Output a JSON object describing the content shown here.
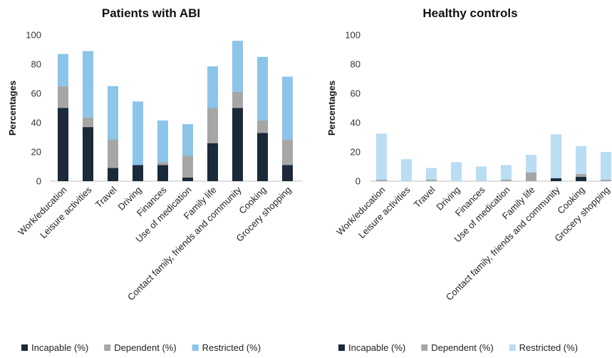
{
  "chart_data": [
    {
      "type": "bar",
      "stacked": true,
      "title": "Patients with ABI",
      "xlabel": "",
      "ylabel": "Percentages",
      "ylim": [
        0,
        100
      ],
      "yticks": [
        "0",
        "20",
        "40",
        "60",
        "80",
        "100"
      ],
      "grid": false,
      "legend": "bottom",
      "categories": [
        "Work/education",
        "Leisure activities",
        "Travel",
        "Driving",
        "Finances",
        "Use of medication",
        "Family life",
        "Contact family, friends and community",
        "Cooking",
        "Grocery shopping"
      ],
      "series": [
        {
          "name": "Incapable (%)",
          "color": "#1b2a3a",
          "values": [
            50,
            37,
            9,
            11,
            11,
            2.5,
            26,
            50,
            33,
            11
          ]
        },
        {
          "name": "Dependent (%)",
          "color": "#a6a6a6",
          "values": [
            15,
            6.5,
            19.5,
            0,
            2,
            15,
            24,
            11,
            8.5,
            17.5
          ]
        },
        {
          "name": "Restricted (%)",
          "color": "#8cc4ea",
          "values": [
            22,
            45.5,
            36.5,
            43.5,
            28.5,
            21.5,
            28.5,
            35,
            43.5,
            43
          ]
        }
      ]
    },
    {
      "type": "bar",
      "stacked": true,
      "title": "Healthy controls",
      "xlabel": "",
      "ylabel": "Percentages",
      "ylim": [
        0,
        100
      ],
      "yticks": [
        "0",
        "20",
        "40",
        "60",
        "80",
        "100"
      ],
      "grid": false,
      "legend": "bottom",
      "categories": [
        "Work/education",
        "Leisure activities",
        "Travel",
        "Driving",
        "Finances",
        "Use of medication",
        "Family life",
        "Contact family, friends and community",
        "Cooking",
        "Grocery shopping"
      ],
      "series": [
        {
          "name": "Incapable (%)",
          "color": "#1b2a3a",
          "values": [
            0,
            0,
            0,
            0,
            0,
            0,
            0,
            2,
            3,
            0
          ]
        },
        {
          "name": "Dependent (%)",
          "color": "#a6a6a6",
          "values": [
            1,
            0,
            1,
            0,
            0,
            1,
            6,
            0,
            2,
            1
          ]
        },
        {
          "name": "Restricted (%)",
          "color": "#b9ddf3",
          "values": [
            31.5,
            15,
            8,
            13,
            10,
            10,
            12,
            30,
            19,
            19
          ]
        }
      ]
    }
  ]
}
